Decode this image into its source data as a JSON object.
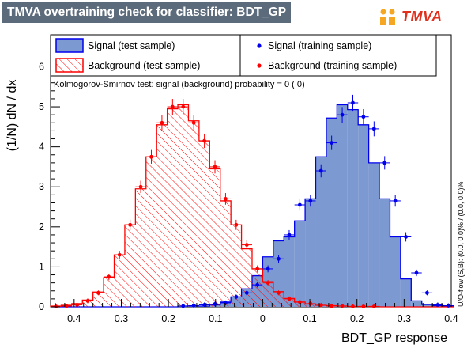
{
  "title": "TMVA overtraining check for classifier: BDT_GP",
  "logo": {
    "text": "TMVA",
    "icon": "tmva-logo-icon"
  },
  "colors": {
    "signal_fill": "#7d99d1",
    "signal_line": "#0000ee",
    "background_line": "#ff0000",
    "title_bg": "#5c6b7b"
  },
  "legend": {
    "signal_test": "Signal (test sample)",
    "background_test": "Background (test sample)",
    "signal_train": "Signal (training sample)",
    "background_train": "Background (training sample)"
  },
  "ks_text": "Kolmogorov-Smirnov test: signal (background) probability =     0 (    0)",
  "overflow_text": "U/O-flow (S,B): (0.0, 0.0)% / (0.0, 0.0)%",
  "chart_data": {
    "type": "histogram",
    "xlabel": "BDT_GP response",
    "ylabel": "(1/N) dN / dx",
    "xlim": [
      -0.45,
      0.4
    ],
    "ylim": [
      0,
      6.8
    ],
    "x_tick_labels": [
      "0.4",
      "0.3",
      "0.2",
      "0.1",
      "0",
      "0.1",
      "0.2",
      "0.3",
      "0.4"
    ],
    "x_ticks": [
      -0.4,
      -0.3,
      -0.2,
      -0.1,
      0,
      0.1,
      0.2,
      0.3,
      0.4
    ],
    "y_ticks": [
      0,
      1,
      2,
      3,
      4,
      5,
      6
    ],
    "bin_edges": [
      -0.45,
      -0.4275,
      -0.405,
      -0.3825,
      -0.36,
      -0.3375,
      -0.315,
      -0.2925,
      -0.27,
      -0.2475,
      -0.225,
      -0.2025,
      -0.18,
      -0.1575,
      -0.135,
      -0.1125,
      -0.09,
      -0.0675,
      -0.045,
      -0.0225,
      0.0,
      0.0225,
      0.045,
      0.0675,
      0.09,
      0.1125,
      0.135,
      0.1575,
      0.18,
      0.2025,
      0.225,
      0.2475,
      0.27,
      0.2925,
      0.315,
      0.3375,
      0.36,
      0.3825,
      0.405
    ],
    "series": [
      {
        "name": "Signal (test sample)",
        "style": "filled-histogram",
        "values": [
          0,
          0,
          0,
          0,
          0,
          0,
          0,
          0,
          0,
          0,
          0,
          0,
          0.02,
          0.02,
          0.02,
          0.05,
          0.12,
          0.25,
          0.45,
          0.78,
          1.25,
          1.65,
          1.75,
          2.15,
          2.7,
          3.75,
          4.72,
          5.05,
          4.93,
          4.55,
          3.6,
          2.7,
          1.75,
          0.7,
          0.15,
          0.06,
          0.03,
          0.02
        ]
      },
      {
        "name": "Background (test sample)",
        "style": "hatched-histogram",
        "values": [
          0.02,
          0.04,
          0.08,
          0.17,
          0.37,
          0.73,
          1.3,
          2.05,
          2.95,
          3.75,
          4.55,
          4.95,
          5.05,
          4.65,
          4.15,
          3.45,
          2.65,
          2.05,
          1.45,
          0.95,
          0.63,
          0.38,
          0.21,
          0.12,
          0.07,
          0.04,
          0.03,
          0.02,
          0.01,
          0.01,
          0.01,
          0.0,
          0.0,
          0.0,
          0.0,
          0.0,
          0.0,
          0.0
        ]
      },
      {
        "name": "Signal (training sample)",
        "style": "points",
        "values": [
          0,
          0,
          0,
          0,
          0,
          0,
          0,
          0,
          0,
          0,
          0,
          0,
          0.02,
          0.03,
          0.05,
          0.07,
          0.1,
          0.25,
          0.35,
          0.55,
          0.95,
          1.2,
          1.8,
          2.55,
          2.65,
          3.4,
          4.1,
          4.8,
          5.1,
          4.75,
          4.45,
          3.6,
          2.65,
          1.75,
          0.85,
          0.35,
          0.05,
          0.03
        ]
      },
      {
        "name": "Background (training sample)",
        "style": "points",
        "values": [
          0.01,
          0.02,
          0.05,
          0.15,
          0.35,
          0.75,
          1.3,
          2.05,
          3.0,
          3.75,
          4.6,
          5.0,
          5.0,
          4.6,
          4.15,
          3.5,
          2.7,
          2.05,
          1.55,
          0.95,
          0.6,
          0.35,
          0.2,
          0.12,
          0.08,
          0.04,
          0.02,
          0.02,
          0.01,
          0.01,
          0.01,
          0.0,
          0.0,
          0.0,
          0.0,
          0.0,
          0.0,
          0.0
        ]
      }
    ],
    "legend_position": "top"
  }
}
